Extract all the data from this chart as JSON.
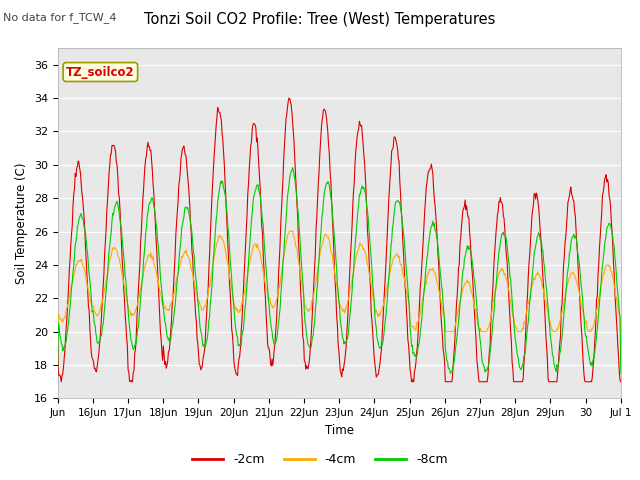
{
  "title": "Tonzi Soil CO2 Profile: Tree (West) Temperatures",
  "subtitle": "No data for f_TCW_4",
  "ylabel": "Soil Temperature (C)",
  "xlabel": "Time",
  "ylim": [
    16,
    37
  ],
  "yticks": [
    16,
    18,
    20,
    22,
    24,
    26,
    28,
    30,
    32,
    34,
    36
  ],
  "legend_label_2cm": "-2cm",
  "legend_label_4cm": "-4cm",
  "legend_label_8cm": "-8cm",
  "color_2cm": "#dd0000",
  "color_4cm": "#ffaa00",
  "color_8cm": "#00cc00",
  "box_label": "TZ_soilco2",
  "bg_color": "#e8e8e8",
  "x_tick_labels": [
    "Jun",
    "16Jun",
    "17Jun",
    "18Jun",
    "19Jun",
    "20Jun",
    "21Jun",
    "22Jun",
    "23Jun",
    "24Jun",
    "25Jun",
    "26Jun",
    "27Jun",
    "28Jun",
    "29Jun",
    "30",
    "Jul 1"
  ]
}
